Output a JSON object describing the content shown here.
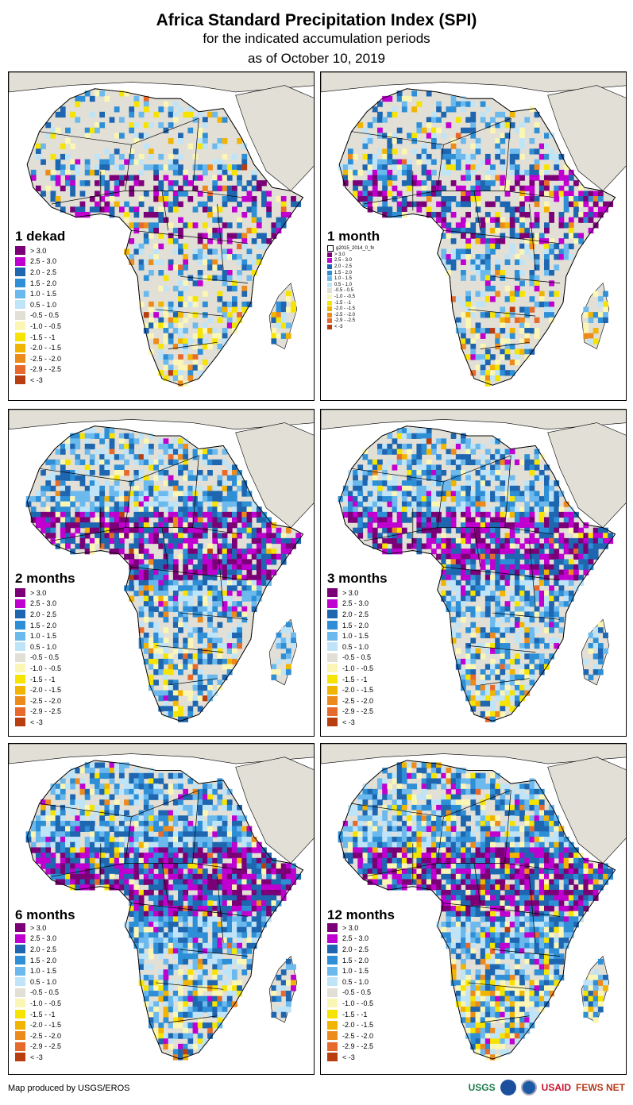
{
  "header": {
    "title": "Africa Standard Precipitation Index (SPI)",
    "subtitle": "for the indicated accumulation periods",
    "date": "as of October 10, 2019"
  },
  "legend": [
    {
      "label": "> 3.0",
      "color": "#7b0077"
    },
    {
      "label": "2.5 - 3.0",
      "color": "#c000d0"
    },
    {
      "label": "2.0 - 2.5",
      "color": "#1f66b0"
    },
    {
      "label": "1.5 - 2.0",
      "color": "#2e8fd6"
    },
    {
      "label": "1.0 - 1.5",
      "color": "#6cb9ee"
    },
    {
      "label": "0.5 - 1.0",
      "color": "#bfe4f8"
    },
    {
      "label": "-0.5 - 0.5",
      "color": "#e1dfd6"
    },
    {
      "label": "-1.0 - -0.5",
      "color": "#fbf6b4"
    },
    {
      "label": "-1.5 - -1",
      "color": "#f6e400"
    },
    {
      "label": "-2.0 - -1.5",
      "color": "#f1b400"
    },
    {
      "label": "-2.5 - -2.0",
      "color": "#ec8a1c"
    },
    {
      "label": "-2.9 - -2.5",
      "color": "#e76a2d"
    },
    {
      "label": "< -3",
      "color": "#b83e10"
    }
  ],
  "legend_1dekad": [
    "> 3.0",
    "2.5 - 3.0",
    "2.0 - 2.5",
    "1.5 - 2.0",
    "1.0 - 1.5",
    "0.5 - 1.0",
    "-0.5 - 0.5",
    "-1.0 - -0.5",
    "-1.5 - -1",
    "-2.0 - -1.5",
    "-2.5 - -2.0",
    "-2.9 - -2.5",
    "< -3"
  ],
  "legend_1month": [
    "> 3.0",
    "2.5 - 3.0",
    "2.0 - 2.5",
    "1.5 - 2.0",
    "1.0 - 1.5",
    "0.5 - 1.0",
    "-0.5 - 0.5",
    "-1.0 - -0.5",
    "-1.5 - -1",
    "-2.0 - -1.5",
    "-2.5 - -2.0",
    "-2.9 - -2.5",
    "< -3"
  ],
  "layer_label_1month": "g2015_2014_0_fn",
  "panels": [
    {
      "id": "p1",
      "title": "1 dekad",
      "wet": 0.35,
      "dry": 0.12
    },
    {
      "id": "p2",
      "title": "1 month",
      "wet": 0.45,
      "dry": 0.12
    },
    {
      "id": "p3",
      "title": "2 months",
      "wet": 0.7,
      "dry": 0.1
    },
    {
      "id": "p4",
      "title": "3 months",
      "wet": 0.72,
      "dry": 0.1
    },
    {
      "id": "p5",
      "title": "6 months",
      "wet": 0.8,
      "dry": 0.12
    },
    {
      "id": "p6",
      "title": "12 months",
      "wet": 0.75,
      "dry": 0.2
    }
  ],
  "footer": {
    "credit": "Map produced by USGS/EROS",
    "logo_usgs": "USGS",
    "logo_usaid": "USAID",
    "logo_fews": "FEWS NET"
  },
  "colors": {
    "water": "#ffffff",
    "land": "#e1dfd6",
    "border": "#000000"
  }
}
